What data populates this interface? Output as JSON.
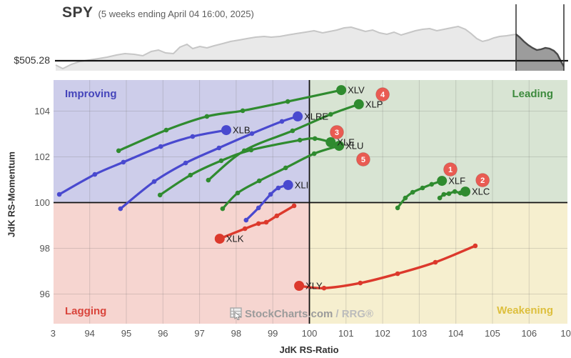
{
  "header": {
    "symbol": "SPY",
    "subtitle": "(5 weeks ending April 04 16:00, 2025)",
    "price": "$505.28"
  },
  "sparkline": {
    "baseline_y": 85,
    "bottom_y": 99,
    "window_x": [
      723,
      790
    ],
    "area_fill": "#e9e9e9",
    "area_stroke": "#c6c6c6",
    "window_fill": "#9c9c9c",
    "window_stroke": "#4a4a4a",
    "window_line_color": "#2f2f2f",
    "baseline_color": "#141414",
    "points": [
      [
        78,
        91
      ],
      [
        88,
        96
      ],
      [
        100,
        90
      ],
      [
        112,
        86
      ],
      [
        125,
        84
      ],
      [
        138,
        82
      ],
      [
        150,
        80
      ],
      [
        163,
        77
      ],
      [
        175,
        75
      ],
      [
        188,
        76
      ],
      [
        200,
        78
      ],
      [
        212,
        72
      ],
      [
        222,
        70
      ],
      [
        232,
        74
      ],
      [
        243,
        75
      ],
      [
        252,
        66
      ],
      [
        262,
        62
      ],
      [
        270,
        68
      ],
      [
        280,
        65
      ],
      [
        290,
        67
      ],
      [
        300,
        64
      ],
      [
        312,
        61
      ],
      [
        323,
        58
      ],
      [
        335,
        56
      ],
      [
        346,
        54
      ],
      [
        358,
        52
      ],
      [
        370,
        51
      ],
      [
        380,
        52
      ],
      [
        392,
        51
      ],
      [
        403,
        49
      ],
      [
        415,
        47
      ],
      [
        428,
        45
      ],
      [
        440,
        43
      ],
      [
        452,
        46
      ],
      [
        462,
        44
      ],
      [
        472,
        42
      ],
      [
        482,
        39
      ],
      [
        492,
        38
      ],
      [
        502,
        41
      ],
      [
        512,
        44
      ],
      [
        522,
        42
      ],
      [
        532,
        46
      ],
      [
        542,
        48
      ],
      [
        552,
        45
      ],
      [
        562,
        49
      ],
      [
        572,
        46
      ],
      [
        582,
        43
      ],
      [
        592,
        41
      ],
      [
        602,
        40
      ],
      [
        612,
        43
      ],
      [
        622,
        41
      ],
      [
        632,
        39
      ],
      [
        642,
        37
      ],
      [
        652,
        41
      ],
      [
        660,
        47
      ],
      [
        668,
        54
      ],
      [
        676,
        58
      ],
      [
        684,
        56
      ],
      [
        692,
        53
      ],
      [
        700,
        51
      ],
      [
        710,
        50
      ],
      [
        716,
        49
      ],
      [
        723,
        48
      ],
      [
        728,
        52
      ],
      [
        734,
        58
      ],
      [
        740,
        63
      ],
      [
        746,
        67
      ],
      [
        752,
        70
      ],
      [
        758,
        69
      ],
      [
        764,
        67
      ],
      [
        770,
        68
      ],
      [
        776,
        71
      ],
      [
        781,
        76
      ],
      [
        786,
        86
      ],
      [
        790,
        93
      ]
    ]
  },
  "chart_data": {
    "type": "scatter",
    "xlabel": "JdK RS-Ratio",
    "ylabel": "JdK RS-Momentum",
    "xlim": [
      93.0,
      107.05
    ],
    "ylim": [
      94.7,
      105.36
    ],
    "grid": true,
    "legend_position": "none",
    "x_ticks": [
      {
        "v": 93,
        "label": "3"
      },
      {
        "v": 94,
        "label": "94"
      },
      {
        "v": 95,
        "label": "95"
      },
      {
        "v": 96,
        "label": "96"
      },
      {
        "v": 97,
        "label": "97"
      },
      {
        "v": 98,
        "label": "98"
      },
      {
        "v": 99,
        "label": "99"
      },
      {
        "v": 100,
        "label": "100"
      },
      {
        "v": 101,
        "label": "101"
      },
      {
        "v": 102,
        "label": "102"
      },
      {
        "v": 103,
        "label": "103"
      },
      {
        "v": 104,
        "label": "104"
      },
      {
        "v": 105,
        "label": "105"
      },
      {
        "v": 106,
        "label": "106"
      },
      {
        "v": 107,
        "label": "10"
      }
    ],
    "y_ticks": [
      {
        "v": 96,
        "label": "96"
      },
      {
        "v": 98,
        "label": "98"
      },
      {
        "v": 100,
        "label": "100"
      },
      {
        "v": 102,
        "label": "102"
      },
      {
        "v": 104,
        "label": "104"
      }
    ],
    "quadrants": [
      {
        "name": "Improving",
        "fill": "#cdcdea",
        "label_color": "#4545bb",
        "position": "top-left"
      },
      {
        "name": "Leading",
        "fill": "#d8e4d3",
        "label_color": "#3d8a3d",
        "position": "top-right"
      },
      {
        "name": "Lagging",
        "fill": "#f6d5d0",
        "label_color": "#d9453c",
        "position": "bottom-left"
      },
      {
        "name": "Weakening",
        "fill": "#f6efcf",
        "label_color": "#ddbf3d",
        "position": "bottom-right"
      }
    ],
    "colors": {
      "green": "#2f8b2f",
      "blue": "#4949cf",
      "red": "#dc392c",
      "badge": "#e95b52"
    },
    "series": [
      {
        "name": "XLV",
        "color": "green",
        "points": [
          [
            94.79,
            102.27
          ],
          [
            96.09,
            103.17
          ],
          [
            97.2,
            103.77
          ],
          [
            98.18,
            104.02
          ],
          [
            99.41,
            104.42
          ],
          [
            100.87,
            104.92
          ]
        ]
      },
      {
        "name": "XLP",
        "color": "green",
        "points": [
          [
            97.24,
            100.98
          ],
          [
            98.22,
            102.27
          ],
          [
            99.54,
            103.14
          ],
          [
            100.58,
            103.86
          ],
          [
            101.35,
            104.3
          ]
        ]
      },
      {
        "name": "XLRE",
        "color": "blue",
        "points": [
          [
            94.84,
            99.73
          ],
          [
            95.76,
            100.92
          ],
          [
            96.62,
            101.73
          ],
          [
            97.53,
            102.39
          ],
          [
            98.43,
            103.02
          ],
          [
            99.25,
            103.55
          ],
          [
            99.68,
            103.77
          ]
        ]
      },
      {
        "name": "XLB",
        "color": "blue",
        "points": [
          [
            93.17,
            100.36
          ],
          [
            94.14,
            101.23
          ],
          [
            94.92,
            101.77
          ],
          [
            95.94,
            102.45
          ],
          [
            96.81,
            102.89
          ],
          [
            97.73,
            103.17
          ]
        ]
      },
      {
        "name": "XLE",
        "color": "green",
        "points": [
          [
            95.92,
            100.33
          ],
          [
            96.75,
            101.2
          ],
          [
            97.59,
            101.83
          ],
          [
            98.41,
            102.3
          ],
          [
            99.74,
            102.73
          ],
          [
            100.15,
            102.8
          ],
          [
            100.58,
            102.64
          ]
        ]
      },
      {
        "name": "XLU",
        "color": "green",
        "points": [
          [
            97.63,
            99.73
          ],
          [
            98.04,
            100.42
          ],
          [
            98.63,
            100.95
          ],
          [
            99.35,
            101.52
          ],
          [
            100.13,
            102.14
          ],
          [
            100.81,
            102.48
          ]
        ]
      },
      {
        "name": "XLI",
        "color": "blue",
        "points": [
          [
            98.27,
            99.23
          ],
          [
            98.61,
            99.77
          ],
          [
            98.94,
            100.36
          ],
          [
            99.15,
            100.64
          ],
          [
            99.42,
            100.77
          ]
        ]
      },
      {
        "name": "XLF",
        "color": "green",
        "points": [
          [
            102.41,
            99.77
          ],
          [
            102.62,
            100.2
          ],
          [
            102.82,
            100.45
          ],
          [
            103.09,
            100.64
          ],
          [
            103.34,
            100.8
          ],
          [
            103.62,
            100.95
          ]
        ]
      },
      {
        "name": "XLC",
        "color": "green",
        "points": [
          [
            103.56,
            100.2
          ],
          [
            103.67,
            100.36
          ],
          [
            103.81,
            100.39
          ],
          [
            103.97,
            100.48
          ],
          [
            104.12,
            100.42
          ],
          [
            104.26,
            100.48
          ]
        ]
      },
      {
        "name": "XLK",
        "color": "red",
        "points": [
          [
            99.58,
            99.86
          ],
          [
            99.11,
            99.42
          ],
          [
            98.82,
            99.14
          ],
          [
            98.61,
            99.08
          ],
          [
            98.24,
            98.86
          ],
          [
            97.55,
            98.42
          ]
        ]
      },
      {
        "name": "XLY",
        "color": "red",
        "points": [
          [
            104.53,
            98.11
          ],
          [
            103.44,
            97.39
          ],
          [
            102.41,
            96.89
          ],
          [
            101.39,
            96.48
          ],
          [
            100.4,
            96.26
          ],
          [
            99.72,
            96.36
          ]
        ]
      }
    ],
    "badges": [
      {
        "label": "1",
        "r": 103.85,
        "m": 101.45
      },
      {
        "label": "2",
        "r": 104.73,
        "m": 100.98
      },
      {
        "label": "3",
        "r": 100.75,
        "m": 103.08
      },
      {
        "label": "4",
        "r": 102.0,
        "m": 104.73
      },
      {
        "label": "5",
        "r": 101.47,
        "m": 101.89
      }
    ]
  },
  "watermark": {
    "text_main": "StockCharts.com",
    "text_suffix": "/ RRG®"
  }
}
